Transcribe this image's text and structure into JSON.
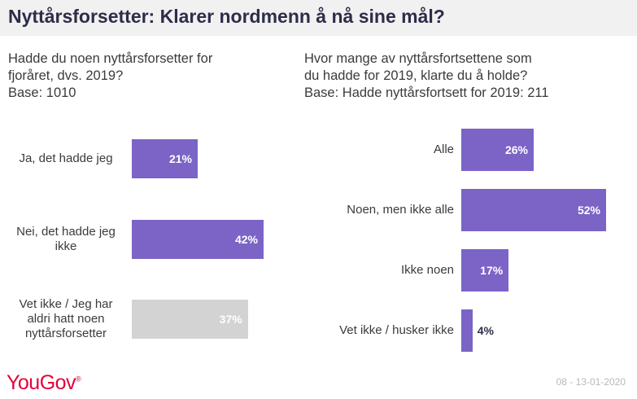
{
  "title": "Nyttårsforsetter: Klarer nordmenn å nå sine mål?",
  "colors": {
    "purple": "#7b64c6",
    "grey": "#d3d3d3",
    "header_bg": "#f1f1f1",
    "logo": "#e4003b"
  },
  "chart_data": [
    {
      "type": "bar",
      "orientation": "horizontal",
      "subtitle": [
        "Hadde du noen nyttårsforsetter for",
        "fjoråret, dvs. 2019?",
        "Base: 1010"
      ],
      "categories": [
        "Ja, det hadde jeg",
        "Nei, det hadde jeg ikke",
        "Vet ikke /  Jeg har aldri hatt noen nyttårsforsetter"
      ],
      "values": [
        21,
        42,
        37
      ],
      "labels": [
        "21%",
        "42%",
        "37%"
      ],
      "bar_colors": [
        "#7b64c6",
        "#7b64c6",
        "#d3d3d3"
      ],
      "xlim": [
        0,
        42
      ]
    },
    {
      "type": "bar",
      "orientation": "horizontal",
      "subtitle": [
        "Hvor mange av nyttårsfortsettene som",
        "du hadde for 2019, klarte du å holde?",
        "Base: Hadde nyttårsfortsett for 2019: 211"
      ],
      "categories": [
        "Alle",
        "Noen, men ikke alle",
        "Ikke noen",
        "Vet ikke / husker ikke"
      ],
      "values": [
        26,
        52,
        17,
        4
      ],
      "labels": [
        "26%",
        "52%",
        "17%",
        "4%"
      ],
      "bar_colors": [
        "#7b64c6",
        "#7b64c6",
        "#7b64c6",
        "#7b64c6"
      ],
      "xlim": [
        0,
        52
      ]
    }
  ],
  "footer": {
    "brand": "YouGov",
    "trademark": "®",
    "date": "08 - 13-01-2020"
  }
}
